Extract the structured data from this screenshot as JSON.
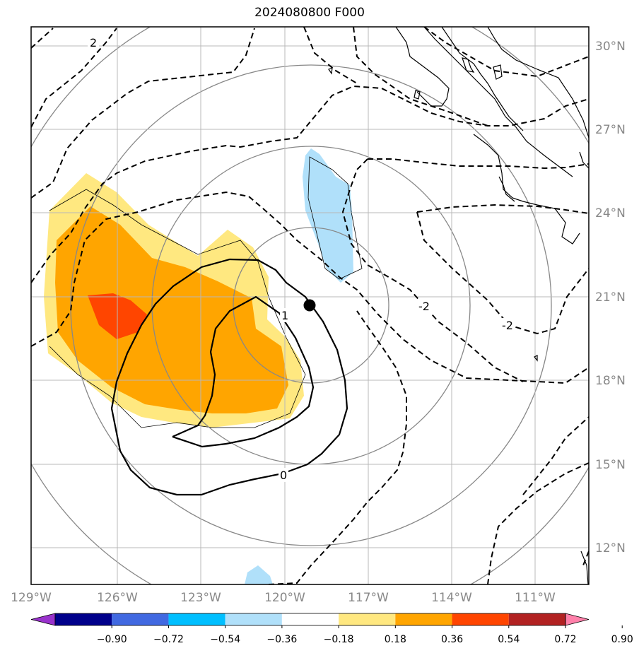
{
  "title": "2024080800 F000",
  "map": {
    "lon_labels": [
      "129°W",
      "126°W",
      "123°W",
      "120°W",
      "117°W",
      "114°W",
      "111°W"
    ],
    "lat_labels": [
      "30°N",
      "27°N",
      "24°N",
      "21°N",
      "18°N",
      "15°N",
      "12°N"
    ],
    "contour_labels": [
      "2",
      "1",
      "0",
      "-2",
      "-2"
    ],
    "center_marker": {
      "lon": -119.1,
      "lat": 20.8
    }
  },
  "colorbar": {
    "ticks": [
      "−0.90",
      "−0.72",
      "−0.54",
      "−0.36",
      "−0.18",
      "0.18",
      "0.36",
      "0.54",
      "0.72",
      "0.90"
    ],
    "colors": [
      "#9932cc",
      "#00008b",
      "#4169e1",
      "#00bfff",
      "#b0e0fa",
      "#ffffff",
      "#ffe880",
      "#ffa500",
      "#ff4500",
      "#b22222",
      "#ff80aa"
    ]
  }
}
